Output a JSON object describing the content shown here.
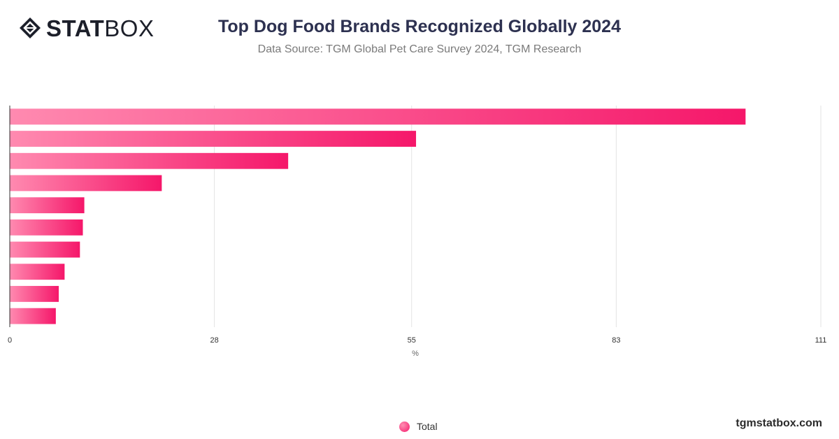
{
  "header": {
    "logo_stat": "STAT",
    "logo_box": "BOX",
    "title": "Top Dog Food Brands Recognized Globally 2024",
    "subtitle": "Data Source: TGM Global Pet Care Survey 2024, TGM Research"
  },
  "footer": {
    "site": "tgmstatbox.com"
  },
  "colors": {
    "bar_start": "#ff8ab0",
    "bar_end": "#f5176a",
    "grid": "#e3e3e3",
    "axis": "#333333"
  },
  "chart_data": {
    "type": "bar",
    "orientation": "horizontal",
    "categories": [
      "",
      "",
      "",
      "",
      "",
      "",
      "",
      "",
      "",
      ""
    ],
    "series": [
      {
        "name": "Total",
        "values": [
          100.7,
          55.6,
          38.1,
          20.8,
          10.2,
          10.0,
          9.6,
          7.5,
          6.7,
          6.3
        ]
      }
    ],
    "xlabel": "%",
    "ylabel": "",
    "xlim": [
      0,
      111
    ],
    "xticks": [
      "0",
      "28",
      "55",
      "83",
      "111"
    ],
    "grid": true,
    "legend": "bottom-center"
  }
}
